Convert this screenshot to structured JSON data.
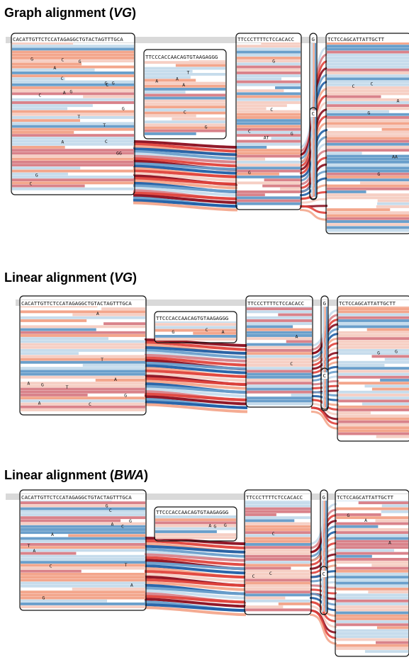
{
  "panels": [
    {
      "title_prefix": "Graph alignment (",
      "title_em": "VG",
      "title_suffix": ")",
      "node_sequences": [
        "CACATTGTTCTCCATAGAGGCTGTACTAGTTTGCA",
        "TTCCCACCAACAGTGTAAGAGGG",
        "TTCCCTTTTCTCCACACC",
        "G",
        "C",
        "TCTCCAGCATTATTGCTT"
      ],
      "mismatch_letters": [
        "T",
        "A",
        "T",
        "T",
        "G",
        "C",
        "G",
        "A",
        "C",
        "A",
        "C",
        "C",
        "C",
        "G",
        "C",
        "A",
        "G",
        "A",
        "C",
        "C",
        "A",
        "A",
        "C",
        "G",
        "C",
        "G",
        "G",
        "C",
        "AT",
        "AA",
        "GG",
        "G",
        "G",
        "G",
        "G",
        "G",
        "G"
      ]
    },
    {
      "title_prefix": "Linear alignment (",
      "title_em": "VG",
      "title_suffix": ")",
      "node_sequences": [
        "CACATTGTTCTCCATAGAGGCTGTACTAGTTTGCA",
        "TTCCCACCAACAGTGTAAGAGGG",
        "TTCCCTTTTCTCCACACC",
        "G",
        "C",
        "TCTCCAGCATTATTGCTT"
      ],
      "mismatch_letters": [
        "T",
        "A",
        "T",
        "C",
        "A",
        "G",
        "A",
        "A",
        "A",
        "A",
        "C",
        "G",
        "C",
        "G",
        "G",
        "G"
      ]
    },
    {
      "title_prefix": "Linear alignment (",
      "title_em": "BWA",
      "title_suffix": ")",
      "node_sequences": [
        "CACATTGTTCTCCATAGAGGCTGTACTAGTTTGCA",
        "TTCCCACCAACAGTGTAAGAGGG",
        "TTCCCTTTTCTCCACACC",
        "G",
        "C",
        "TCTCCAGCATTATTGCTT"
      ],
      "mismatch_letters": [
        "T",
        "A",
        "T",
        "A",
        "C",
        "A",
        "G",
        "A",
        "A",
        "G",
        "C",
        "A",
        "A",
        "C",
        "C",
        "G",
        "C",
        "G",
        "C",
        "G",
        "G"
      ]
    }
  ],
  "colors": {
    "dark_red": "#8b0d1e",
    "red": "#e0433c",
    "salmon": "#f3a68c",
    "light_pink": "#f6cfc4",
    "rose": "#d9828a",
    "light_blue": "#c6dcec",
    "blue": "#6a9fcb",
    "dark_blue": "#1f5fa6",
    "grey_band": "#d9d9d9"
  }
}
